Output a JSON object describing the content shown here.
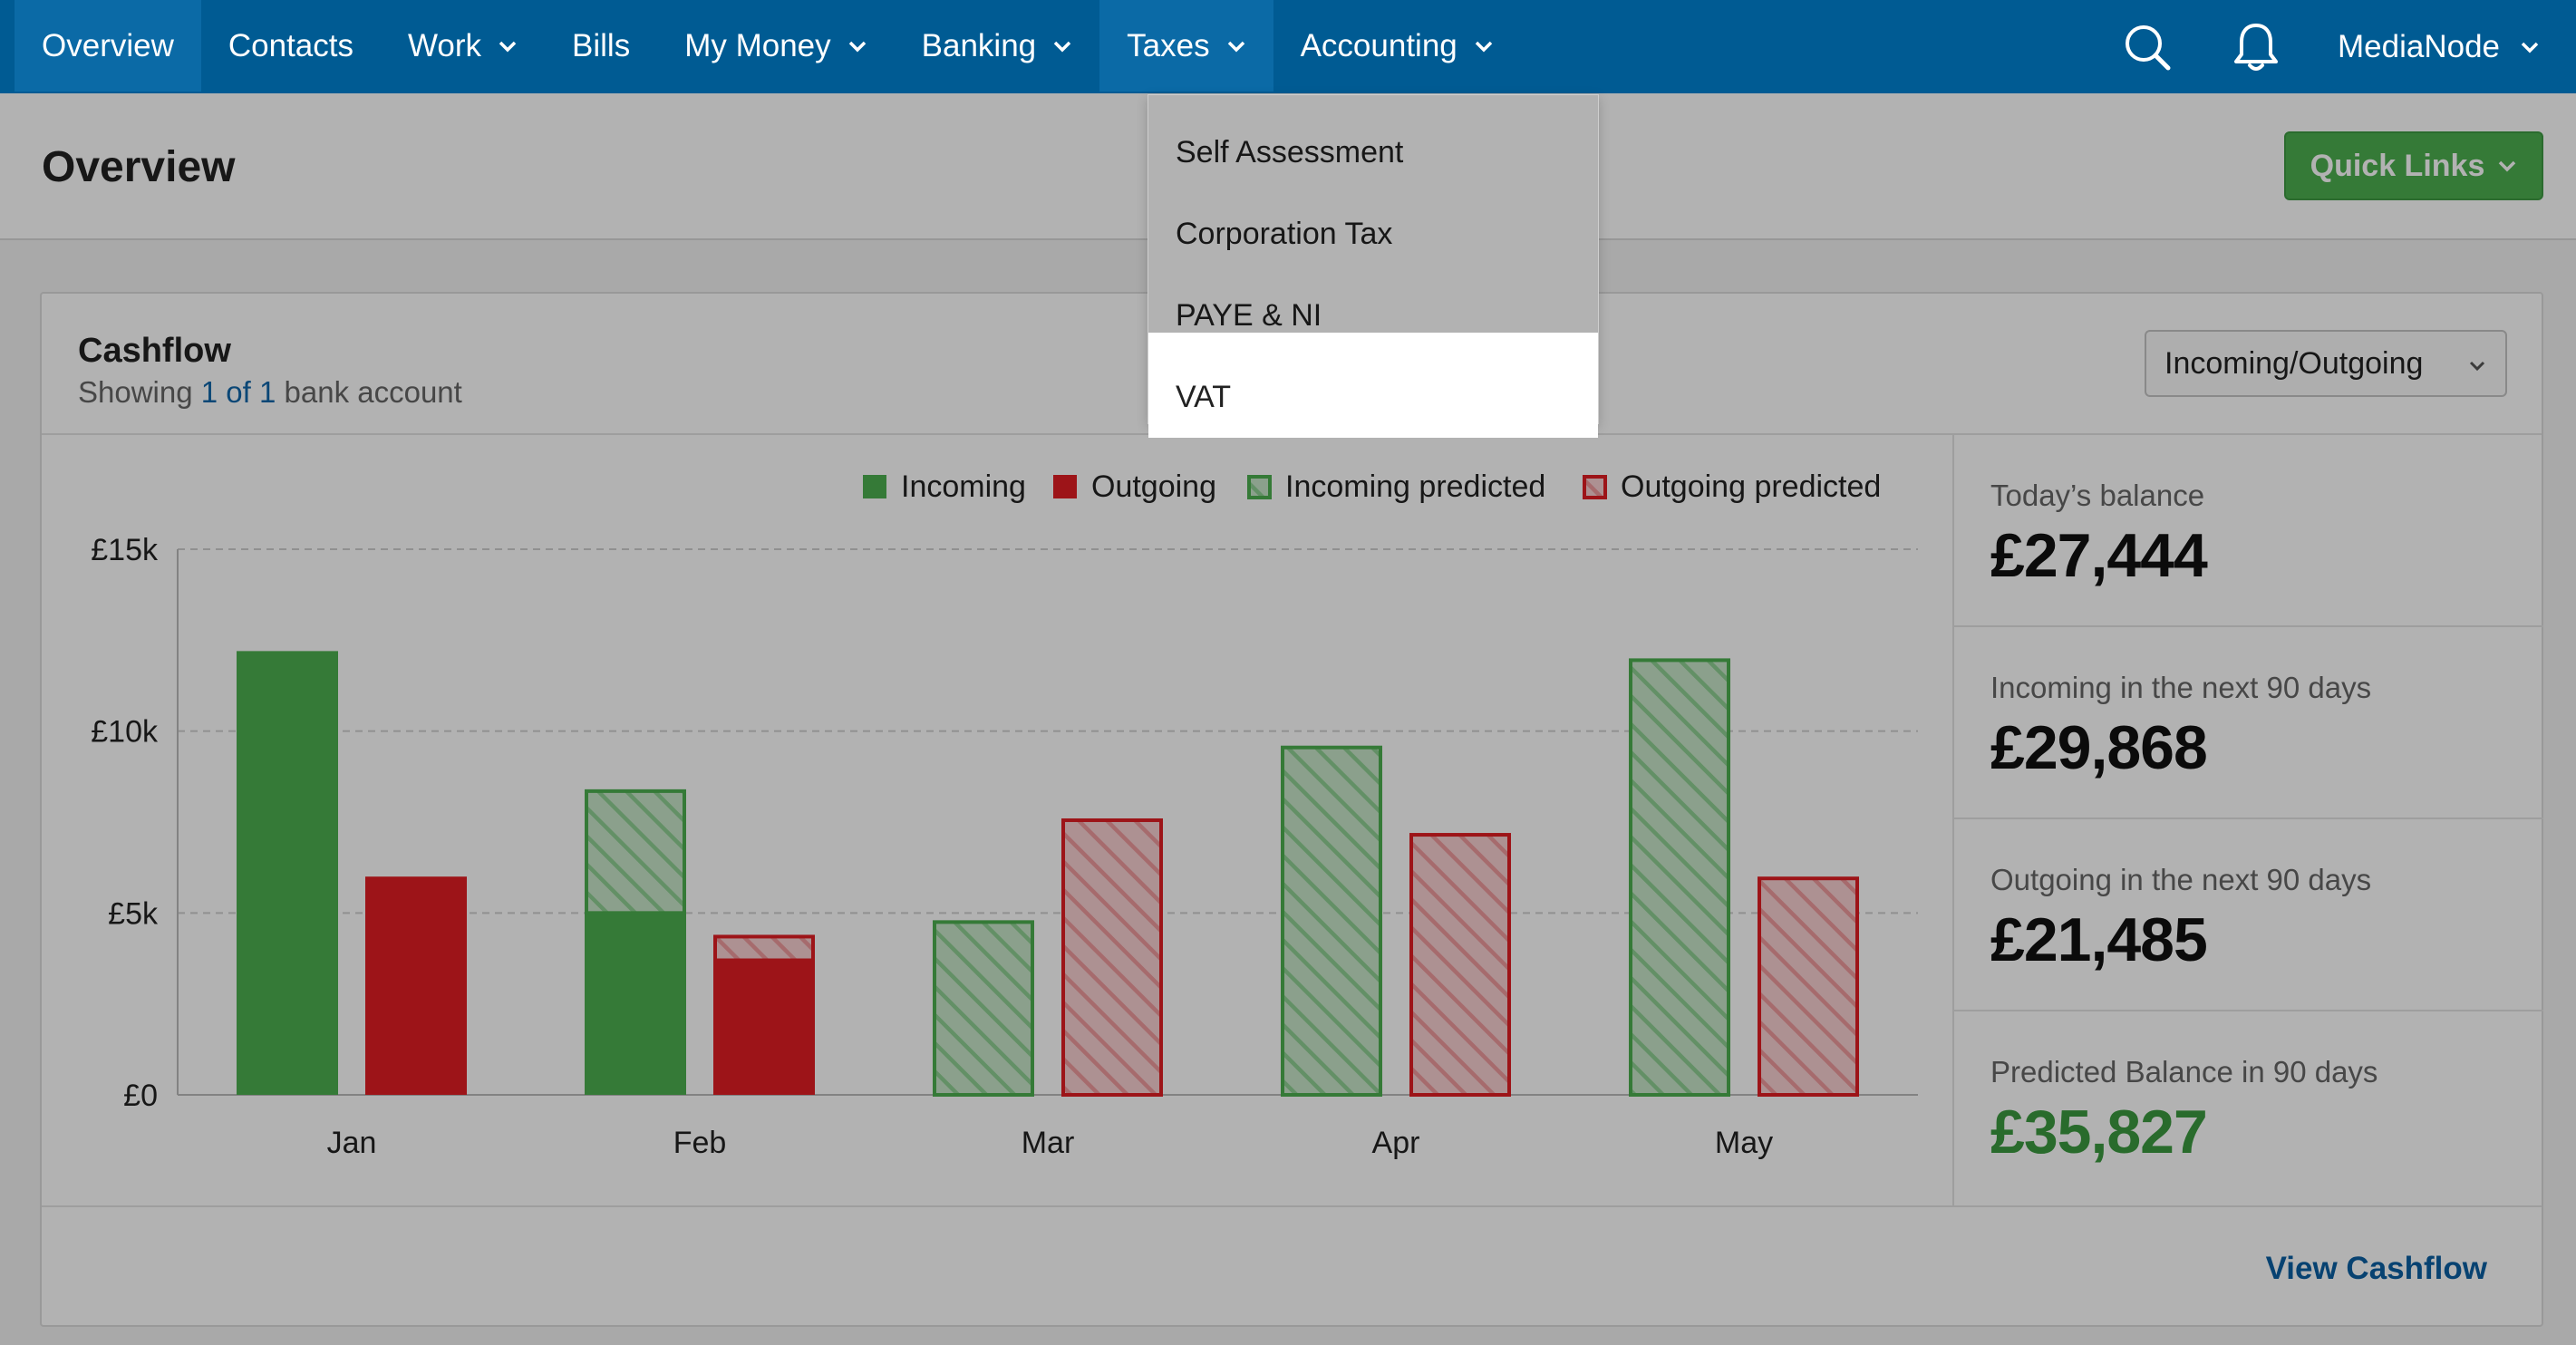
{
  "nav": {
    "items": [
      {
        "label": "Overview",
        "has_chevron": false
      },
      {
        "label": "Contacts",
        "has_chevron": false
      },
      {
        "label": "Work",
        "has_chevron": true
      },
      {
        "label": "Bills",
        "has_chevron": false
      },
      {
        "label": "My Money",
        "has_chevron": true
      },
      {
        "label": "Banking",
        "has_chevron": true
      },
      {
        "label": "Taxes",
        "has_chevron": true
      },
      {
        "label": "Accounting",
        "has_chevron": true
      }
    ],
    "active_index": 0,
    "open_index": 6,
    "search_icon": "search-icon",
    "bell_icon": "bell-icon",
    "user_label": "MediaNode"
  },
  "taxes_menu": {
    "items": [
      "Self Assessment",
      "Corporation Tax",
      "PAYE & NI",
      "VAT"
    ],
    "highlighted_index": 3
  },
  "header": {
    "title": "Overview",
    "quick_links_label": "Quick Links"
  },
  "cashflow": {
    "title": "Cashflow",
    "subtitle_prefix": "Showing",
    "subtitle_link": "1 of 1",
    "subtitle_suffix": "bank account",
    "select_value": "Incoming/Outgoing",
    "view_link": "View Cashflow"
  },
  "stats": [
    {
      "label": "Today’s balance",
      "value": "£27,444",
      "color": ""
    },
    {
      "label": "Incoming in the next 90 days",
      "value": "£29,868",
      "color": ""
    },
    {
      "label": "Outgoing in the next 90 days",
      "value": "£21,485",
      "color": ""
    },
    {
      "label": "Predicted Balance in 90 days",
      "value": "£35,827",
      "color": "green"
    }
  ],
  "colors": {
    "nav_bg": "#005b93",
    "incoming": "#4caf50",
    "outgoing": "#e11d23",
    "incoming_predicted": "#4caf50",
    "outgoing_predicted": "#e11d23"
  },
  "chart_data": {
    "type": "bar",
    "categories": [
      "Jan",
      "Feb",
      "Mar",
      "Apr",
      "May"
    ],
    "series": [
      {
        "name": "Incoming",
        "values": [
          12200,
          5000,
          0,
          0,
          0
        ]
      },
      {
        "name": "Outgoing",
        "values": [
          6000,
          3700,
          0,
          0,
          0
        ]
      },
      {
        "name": "Incoming predicted",
        "values": [
          0,
          3400,
          4800,
          9600,
          12000
        ]
      },
      {
        "name": "Outgoing predicted",
        "values": [
          0,
          700,
          7600,
          7200,
          6000
        ]
      }
    ],
    "stacked_pairs": [
      [
        "Incoming",
        "Incoming predicted"
      ],
      [
        "Outgoing",
        "Outgoing predicted"
      ]
    ],
    "y_ticks": [
      "£0",
      "£5k",
      "£10k",
      "£15k"
    ],
    "y_tick_values": [
      0,
      5000,
      10000,
      15000
    ],
    "ylim": [
      0,
      15000
    ],
    "legend_position": "top-right",
    "grid": true
  }
}
